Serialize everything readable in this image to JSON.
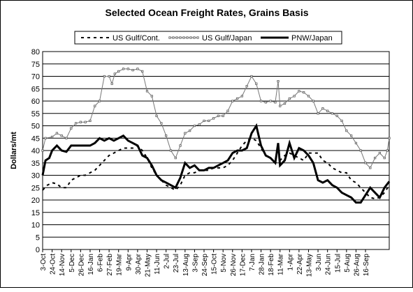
{
  "chart_data": {
    "type": "line",
    "title": "Selected Ocean Freight Rates, Grains Basis",
    "ylabel": "Dollars/mt",
    "xlabel": "",
    "ylim": [
      0,
      80
    ],
    "yticks": [
      0,
      5,
      10,
      15,
      20,
      25,
      30,
      35,
      40,
      45,
      50,
      55,
      60,
      65,
      70,
      75,
      80
    ],
    "grid": true,
    "legend_position": "top",
    "x_tick_labels": [
      "3-Oct",
      "24-Oct",
      "14-Nov",
      "5-Dec",
      "26-Dec",
      "16-Jan",
      "6-Feb",
      "27-Feb",
      "19-Mar",
      "9-Apr",
      "30-Apr",
      "21-May",
      "11-Jun",
      "2-Jul",
      "23-Jul",
      "13-Aug",
      "3-Sep",
      "24-Sep",
      "15-Oct",
      "5-Nov",
      "26-Nov",
      "17-Dec",
      "7-Jan",
      "28-Jan",
      "18-Feb",
      "11-Mar",
      "1-Apr",
      "22-Apr",
      "13-May",
      "3-Jun",
      "24-Jun",
      "15-Jul",
      "5-Aug",
      "26-Aug",
      "16-Sep"
    ],
    "x_range": [
      0,
      36.5
    ],
    "series": [
      {
        "name": "US Gulf/Cont.",
        "color": "#000000",
        "style": "dashed",
        "points": [
          [
            0,
            24
          ],
          [
            0.5,
            26
          ],
          [
            1,
            27
          ],
          [
            1.5,
            26.5
          ],
          [
            2,
            25
          ],
          [
            2.5,
            25
          ],
          [
            3,
            28
          ],
          [
            3.5,
            29
          ],
          [
            4,
            30
          ],
          [
            4.5,
            30
          ],
          [
            5,
            31
          ],
          [
            5.5,
            32
          ],
          [
            6,
            34
          ],
          [
            6.5,
            36
          ],
          [
            7,
            38
          ],
          [
            7.5,
            39
          ],
          [
            8,
            40
          ],
          [
            8.5,
            41
          ],
          [
            9,
            41
          ],
          [
            9.5,
            41
          ],
          [
            10,
            42
          ],
          [
            10.5,
            40
          ],
          [
            11,
            37
          ],
          [
            11.5,
            33
          ],
          [
            12,
            30
          ],
          [
            12.5,
            28
          ],
          [
            13,
            26
          ],
          [
            13.5,
            25
          ],
          [
            14,
            24
          ],
          [
            14.5,
            26
          ],
          [
            15,
            30
          ],
          [
            15.5,
            31
          ],
          [
            16,
            31
          ],
          [
            16.5,
            32
          ],
          [
            17,
            32
          ],
          [
            17.5,
            32
          ],
          [
            18,
            33
          ],
          [
            18.5,
            33
          ],
          [
            19,
            33
          ],
          [
            19.5,
            34
          ],
          [
            20,
            36
          ],
          [
            20.5,
            39
          ],
          [
            21,
            42
          ],
          [
            21.5,
            44
          ],
          [
            22,
            45
          ],
          [
            22.5,
            44
          ],
          [
            23,
            41
          ],
          [
            23.5,
            38
          ],
          [
            24,
            37
          ],
          [
            24.5,
            35
          ],
          [
            25,
            36
          ],
          [
            25.5,
            38
          ],
          [
            26,
            39
          ],
          [
            26.5,
            38
          ],
          [
            27,
            37
          ],
          [
            27.5,
            36
          ],
          [
            28,
            39
          ],
          [
            28.5,
            39
          ],
          [
            29,
            39
          ],
          [
            29.5,
            36
          ],
          [
            30,
            35
          ],
          [
            30.5,
            33
          ],
          [
            31,
            32
          ],
          [
            31.5,
            31
          ],
          [
            32,
            31
          ],
          [
            32.5,
            28
          ],
          [
            33,
            27
          ],
          [
            33.5,
            25
          ],
          [
            34,
            23
          ],
          [
            34.5,
            21
          ],
          [
            35,
            20.5
          ],
          [
            35.5,
            21
          ],
          [
            36,
            23
          ],
          [
            36.5,
            26
          ]
        ]
      },
      {
        "name": "US Gulf/Japan",
        "color": "#000000",
        "style": "dotted-marker",
        "points": [
          [
            0,
            40
          ],
          [
            0.3,
            45
          ],
          [
            1,
            45.5
          ],
          [
            1.5,
            47
          ],
          [
            2,
            46
          ],
          [
            2.5,
            45
          ],
          [
            3,
            49
          ],
          [
            3.5,
            51
          ],
          [
            4,
            51.5
          ],
          [
            4.5,
            51.5
          ],
          [
            5,
            52
          ],
          [
            5.5,
            58
          ],
          [
            6,
            60
          ],
          [
            6.5,
            70
          ],
          [
            7,
            70
          ],
          [
            7.3,
            67
          ],
          [
            7.6,
            71
          ],
          [
            8,
            72
          ],
          [
            8.5,
            73
          ],
          [
            9,
            73
          ],
          [
            9.5,
            72.5
          ],
          [
            10,
            73
          ],
          [
            10.5,
            72
          ],
          [
            11,
            64
          ],
          [
            11.5,
            62
          ],
          [
            12,
            54
          ],
          [
            12.5,
            51
          ],
          [
            13,
            46
          ],
          [
            13.5,
            40
          ],
          [
            14,
            37
          ],
          [
            14.5,
            42
          ],
          [
            15,
            47
          ],
          [
            15.5,
            48
          ],
          [
            16,
            50
          ],
          [
            16.5,
            50.5
          ],
          [
            17,
            52
          ],
          [
            17.5,
            52
          ],
          [
            18,
            53
          ],
          [
            18.5,
            54
          ],
          [
            19,
            54
          ],
          [
            19.5,
            56
          ],
          [
            20,
            60
          ],
          [
            20.5,
            61
          ],
          [
            21,
            62
          ],
          [
            21.5,
            66
          ],
          [
            22,
            70
          ],
          [
            22.5,
            67
          ],
          [
            23,
            60
          ],
          [
            23.5,
            59.5
          ],
          [
            24,
            60
          ],
          [
            24.5,
            59.5
          ],
          [
            24.8,
            68
          ],
          [
            25,
            58
          ],
          [
            25.5,
            59
          ],
          [
            26,
            61
          ],
          [
            26.5,
            62
          ],
          [
            27,
            64
          ],
          [
            27.5,
            63.5
          ],
          [
            28,
            62
          ],
          [
            28.5,
            60
          ],
          [
            29,
            55
          ],
          [
            29.5,
            57
          ],
          [
            30,
            56
          ],
          [
            30.5,
            55
          ],
          [
            31,
            54
          ],
          [
            31.5,
            52
          ],
          [
            32,
            48
          ],
          [
            32.5,
            46
          ],
          [
            33,
            43
          ],
          [
            33.5,
            40
          ],
          [
            34,
            35
          ],
          [
            34.5,
            33
          ],
          [
            35,
            37
          ],
          [
            35.5,
            39
          ],
          [
            36,
            37
          ],
          [
            36.3,
            40
          ],
          [
            36.5,
            45
          ]
        ]
      },
      {
        "name": "PNW/Japan",
        "color": "#000000",
        "style": "solid-thick",
        "points": [
          [
            0,
            30
          ],
          [
            0.3,
            36
          ],
          [
            0.7,
            37
          ],
          [
            1,
            40
          ],
          [
            1.5,
            42
          ],
          [
            2,
            40
          ],
          [
            2.5,
            39.5
          ],
          [
            3,
            42
          ],
          [
            3.5,
            42
          ],
          [
            4,
            42
          ],
          [
            4.5,
            42
          ],
          [
            5,
            42
          ],
          [
            5.5,
            43
          ],
          [
            6,
            45
          ],
          [
            6.5,
            44
          ],
          [
            7,
            45
          ],
          [
            7.5,
            44
          ],
          [
            8,
            45
          ],
          [
            8.5,
            46
          ],
          [
            9,
            44
          ],
          [
            9.5,
            43
          ],
          [
            10,
            42
          ],
          [
            10.5,
            38
          ],
          [
            11,
            37
          ],
          [
            11.5,
            34
          ],
          [
            12,
            30
          ],
          [
            12.5,
            28
          ],
          [
            13,
            27
          ],
          [
            13.5,
            26
          ],
          [
            14,
            25
          ],
          [
            14.5,
            29
          ],
          [
            15,
            35
          ],
          [
            15.5,
            33
          ],
          [
            16,
            34
          ],
          [
            16.5,
            32
          ],
          [
            17,
            32
          ],
          [
            17.5,
            33
          ],
          [
            18,
            33
          ],
          [
            18.5,
            34
          ],
          [
            19,
            35
          ],
          [
            19.5,
            36
          ],
          [
            20,
            39
          ],
          [
            20.5,
            40
          ],
          [
            21,
            40
          ],
          [
            21.5,
            41
          ],
          [
            22,
            47
          ],
          [
            22.5,
            50
          ],
          [
            23,
            42
          ],
          [
            23.5,
            38
          ],
          [
            24,
            37
          ],
          [
            24.5,
            35
          ],
          [
            24.8,
            43
          ],
          [
            25,
            34
          ],
          [
            25.5,
            36
          ],
          [
            26,
            43
          ],
          [
            26.5,
            37
          ],
          [
            27,
            41
          ],
          [
            27.5,
            40
          ],
          [
            28,
            38
          ],
          [
            28.5,
            35
          ],
          [
            29,
            28
          ],
          [
            29.5,
            27
          ],
          [
            30,
            28
          ],
          [
            30.5,
            26
          ],
          [
            31,
            25
          ],
          [
            31.5,
            23
          ],
          [
            32,
            22
          ],
          [
            32.5,
            21
          ],
          [
            33,
            19
          ],
          [
            33.5,
            19
          ],
          [
            34,
            22
          ],
          [
            34.5,
            25
          ],
          [
            35,
            23
          ],
          [
            35.5,
            21
          ],
          [
            36,
            25
          ],
          [
            36.5,
            27.5
          ]
        ]
      }
    ]
  }
}
